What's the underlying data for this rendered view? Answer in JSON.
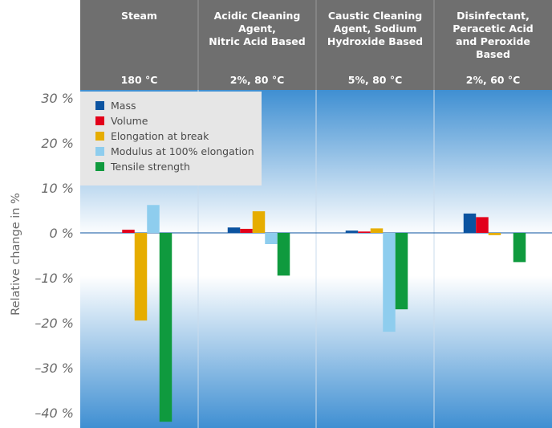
{
  "chart_data": {
    "type": "bar",
    "ylabel": "Relative change in %",
    "ylim": [
      -42,
      30
    ],
    "yticks": [
      30,
      20,
      10,
      0,
      -10,
      -20,
      -30,
      -40
    ],
    "ytick_labels": [
      "30 %",
      "20 %",
      "10 %",
      "0 %",
      "-10 %",
      "-20 %",
      "-30 %",
      "-40 %"
    ],
    "categories": [
      {
        "name_lines": [
          "Steam"
        ],
        "condition": "180 °C"
      },
      {
        "name_lines": [
          "Acidic Cleaning",
          "Agent,",
          "Nitric Acid Based"
        ],
        "condition": "2%, 80 °C"
      },
      {
        "name_lines": [
          "Caustic Cleaning",
          "Agent, Sodium",
          "Hydroxide Based"
        ],
        "condition": "5%, 80 °C"
      },
      {
        "name_lines": [
          "Disinfectant,",
          "Peracetic Acid",
          "and Peroxide",
          "Based"
        ],
        "condition": "2%, 60 °C"
      }
    ],
    "series": [
      {
        "name": "Mass",
        "color": "#0b53a0",
        "values": [
          0,
          1.2,
          0.5,
          4.3
        ]
      },
      {
        "name": "Volume",
        "color": "#e2001a",
        "values": [
          0.7,
          0.9,
          0.3,
          3.5
        ]
      },
      {
        "name": "Elongation at break",
        "color": "#e6ad00",
        "values": [
          -19.5,
          4.8,
          1.0,
          -0.5
        ]
      },
      {
        "name": "Modulus at 100% elongation",
        "color": "#8ecdee",
        "values": [
          6.2,
          -2.5,
          -22.0,
          0
        ]
      },
      {
        "name": "Tensile strength",
        "color": "#0f9a3e",
        "values": [
          -42,
          -9.5,
          -17.0,
          -6.5
        ]
      }
    ],
    "legend_position": "top-left",
    "grid": false
  }
}
